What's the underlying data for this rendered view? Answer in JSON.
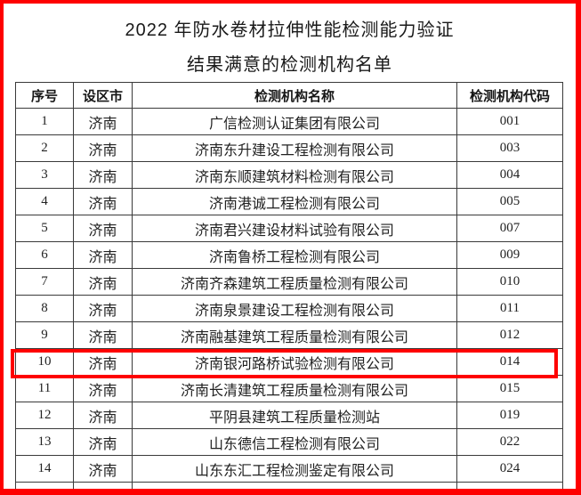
{
  "document": {
    "title": "2022 年防水卷材拉伸性能检测能力验证",
    "subtitle": "结果满意的检测机构名单"
  },
  "annotation": {
    "outer_border_color": "#fe0000",
    "highlight_box_color": "#fe0000",
    "highlighted_row_no": "10"
  },
  "table": {
    "columns": [
      "序号",
      "设区市",
      "检测机构名称",
      "检测机构代码"
    ],
    "rows": [
      {
        "no": "1",
        "city": "济南",
        "name": "广信检测认证集团有限公司",
        "code": "001"
      },
      {
        "no": "2",
        "city": "济南",
        "name": "济南东升建设工程检测有限公司",
        "code": "003"
      },
      {
        "no": "3",
        "city": "济南",
        "name": "济南东顺建筑材料检测有限公司",
        "code": "004"
      },
      {
        "no": "4",
        "city": "济南",
        "name": "济南港诚工程检测有限公司",
        "code": "005"
      },
      {
        "no": "5",
        "city": "济南",
        "name": "济南君兴建设材料试验有限公司",
        "code": "007"
      },
      {
        "no": "6",
        "city": "济南",
        "name": "济南鲁桥工程检测有限公司",
        "code": "009"
      },
      {
        "no": "7",
        "city": "济南",
        "name": "济南齐森建筑工程质量检测有限公司",
        "code": "010"
      },
      {
        "no": "8",
        "city": "济南",
        "name": "济南泉景建设工程检测有限公司",
        "code": "011"
      },
      {
        "no": "9",
        "city": "济南",
        "name": "济南融基建筑工程质量检测有限公司",
        "code": "012"
      },
      {
        "no": "10",
        "city": "济南",
        "name": "济南银河路桥试验检测有限公司",
        "code": "014",
        "highlighted": true
      },
      {
        "no": "11",
        "city": "济南",
        "name": "济南长清建筑工程质量检测有限公司",
        "code": "015"
      },
      {
        "no": "12",
        "city": "济南",
        "name": "平阴县建筑工程质量检测站",
        "code": "019"
      },
      {
        "no": "13",
        "city": "济南",
        "name": "山东德信工程检测有限公司",
        "code": "022"
      },
      {
        "no": "14",
        "city": "济南",
        "name": "山东东汇工程检测鉴定有限公司",
        "code": "024"
      }
    ]
  }
}
